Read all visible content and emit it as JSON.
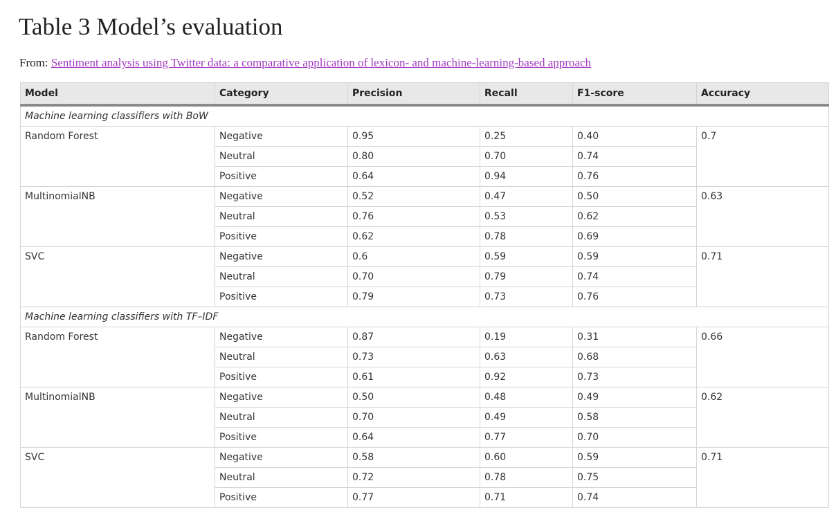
{
  "title": "Table 3 Model’s evaluation",
  "from_label": "From:",
  "source_link": "Sentiment analysis using Twitter data: a comparative application of lexicon- and machine-learning-based approach",
  "columns": [
    "Model",
    "Category",
    "Precision",
    "Recall",
    "F1-score",
    "Accuracy"
  ],
  "sections": [
    {
      "label": "Machine learning classifiers with BoW",
      "models": [
        {
          "name": "Random Forest",
          "accuracy": "0.7",
          "rows": [
            {
              "category": "Negative",
              "precision": "0.95",
              "recall": "0.25",
              "f1": "0.40"
            },
            {
              "category": "Neutral",
              "precision": "0.80",
              "recall": "0.70",
              "f1": "0.74"
            },
            {
              "category": "Positive",
              "precision": "0.64",
              "recall": "0.94",
              "f1": "0.76"
            }
          ]
        },
        {
          "name": "MultinomialNB",
          "accuracy": "0.63",
          "rows": [
            {
              "category": "Negative",
              "precision": "0.52",
              "recall": "0.47",
              "f1": "0.50"
            },
            {
              "category": "Neutral",
              "precision": "0.76",
              "recall": "0.53",
              "f1": "0.62"
            },
            {
              "category": "Positive",
              "precision": "0.62",
              "recall": "0.78",
              "f1": "0.69"
            }
          ]
        },
        {
          "name": "SVC",
          "accuracy": "0.71",
          "rows": [
            {
              "category": "Negative",
              "precision": "0.6",
              "recall": "0.59",
              "f1": "0.59"
            },
            {
              "category": "Neutral",
              "precision": "0.70",
              "recall": "0.79",
              "f1": "0.74"
            },
            {
              "category": "Positive",
              "precision": "0.79",
              "recall": "0.73",
              "f1": "0.76"
            }
          ]
        }
      ]
    },
    {
      "label": "Machine learning classifiers with TF–IDF",
      "models": [
        {
          "name": "Random Forest",
          "accuracy": "0.66",
          "rows": [
            {
              "category": "Negative",
              "precision": "0.87",
              "recall": "0.19",
              "f1": "0.31"
            },
            {
              "category": "Neutral",
              "precision": "0.73",
              "recall": "0.63",
              "f1": "0.68"
            },
            {
              "category": "Positive",
              "precision": "0.61",
              "recall": "0.92",
              "f1": "0.73"
            }
          ]
        },
        {
          "name": "MultinomialNB",
          "accuracy": "0.62",
          "rows": [
            {
              "category": "Negative",
              "precision": "0.50",
              "recall": "0.48",
              "f1": "0.49"
            },
            {
              "category": "Neutral",
              "precision": "0.70",
              "recall": "0.49",
              "f1": "0.58"
            },
            {
              "category": "Positive",
              "precision": "0.64",
              "recall": "0.77",
              "f1": "0.70"
            }
          ]
        },
        {
          "name": "SVC",
          "accuracy": "0.71",
          "rows": [
            {
              "category": "Negative",
              "precision": "0.58",
              "recall": "0.60",
              "f1": "0.59"
            },
            {
              "category": "Neutral",
              "precision": "0.72",
              "recall": "0.78",
              "f1": "0.75"
            },
            {
              "category": "Positive",
              "precision": "0.77",
              "recall": "0.71",
              "f1": "0.74"
            }
          ]
        }
      ]
    }
  ]
}
